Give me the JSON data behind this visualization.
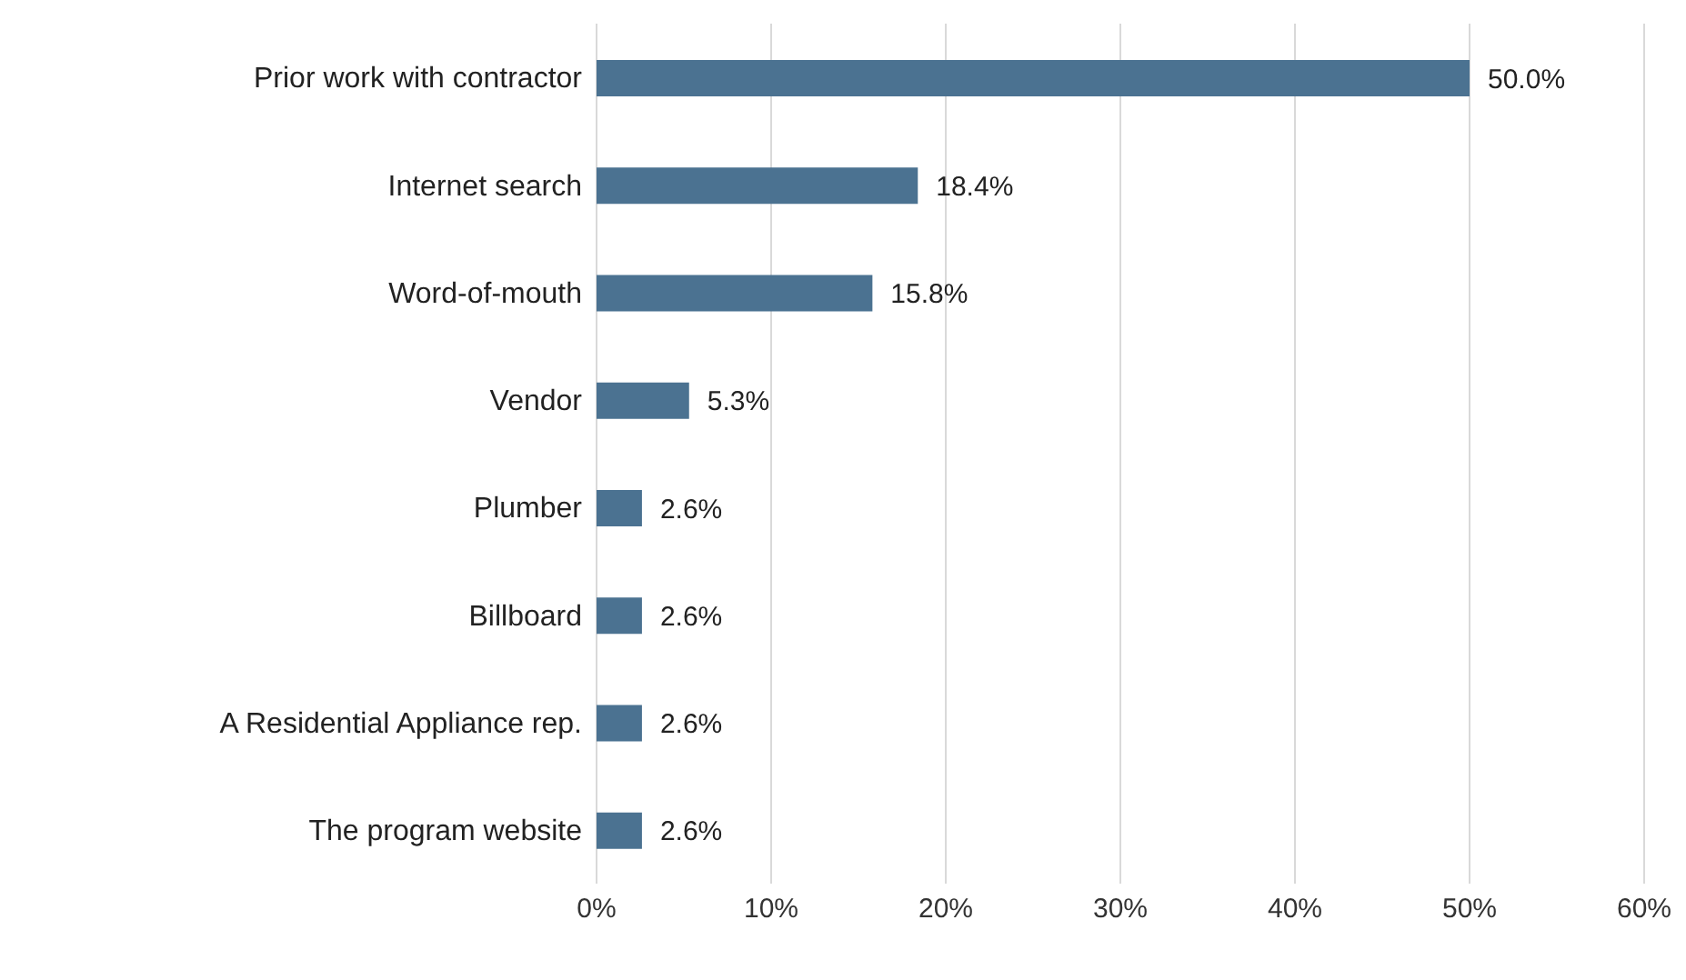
{
  "chart_data": {
    "type": "bar",
    "orientation": "horizontal",
    "categories": [
      "Prior work with contractor",
      "Internet search",
      "Word-of-mouth",
      "Vendor",
      "Plumber",
      "Billboard",
      "A Residential Appliance rep.",
      "The program website"
    ],
    "values": [
      50.0,
      18.4,
      15.8,
      5.3,
      2.6,
      2.6,
      2.6,
      2.6
    ],
    "value_labels": [
      "50.0%",
      "18.4%",
      "15.8%",
      "5.3%",
      "2.6%",
      "2.6%",
      "2.6%",
      "2.6%"
    ],
    "color": "#4b7291",
    "xlim": [
      0,
      60
    ],
    "xticks": [
      {
        "value": 0,
        "label": "0%"
      },
      {
        "value": 10,
        "label": "10%"
      },
      {
        "value": 20,
        "label": "20%"
      },
      {
        "value": 30,
        "label": "30%"
      },
      {
        "value": 40,
        "label": "40%"
      },
      {
        "value": 50,
        "label": "50%"
      },
      {
        "value": 60,
        "label": "60%"
      }
    ],
    "grid": "x"
  }
}
